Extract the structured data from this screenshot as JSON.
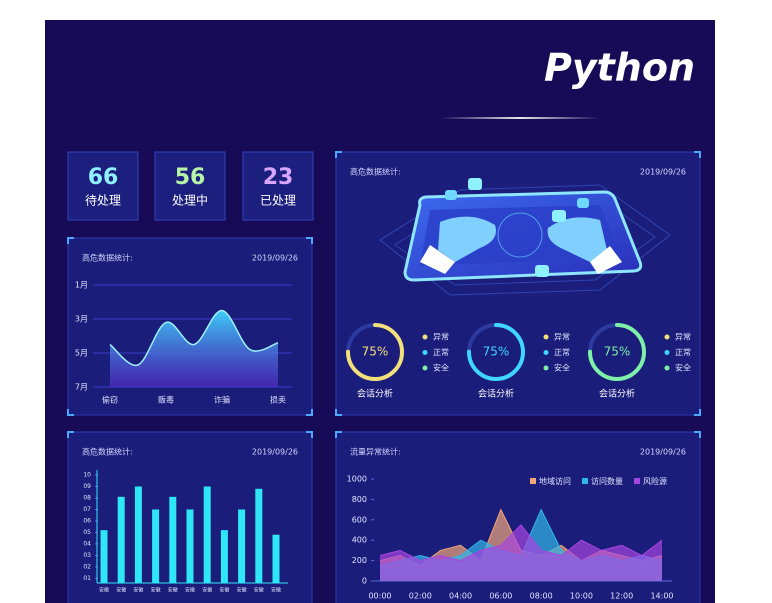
{
  "header": {
    "title": "Python"
  },
  "stats": [
    {
      "value": 66,
      "label": "待处理",
      "color": "#8ff0ff"
    },
    {
      "value": 56,
      "label": "处理中",
      "color": "#b6f5a6"
    },
    {
      "value": 23,
      "label": "已处理",
      "color": "#d9a6ff"
    }
  ],
  "chart_data": [
    {
      "type": "area",
      "title": "高危数据统计:",
      "date": "2019/09/26",
      "categories": [
        "偷窃",
        null,
        "贩毒",
        null,
        "诈骗",
        null,
        "损卖"
      ],
      "series": [
        {
          "color": "#3fd6ff",
          "values": [
            4.5,
            5.7,
            3.2,
            4.5,
            2.5,
            4.8,
            4.4
          ]
        }
      ],
      "ylim": [
        1,
        7
      ],
      "invert_y": true,
      "smooth": true,
      "yticks": [
        {
          "value": 1,
          "label": "1月"
        },
        {
          "value": 3,
          "label": "3月"
        },
        {
          "value": 5,
          "label": "5月"
        },
        {
          "value": 7,
          "label": "7月"
        }
      ],
      "grid": true
    },
    {
      "type": "donut",
      "title": "高危数据统计:",
      "date": "2019/09/26",
      "values": [
        75,
        75,
        75
      ],
      "value_labels": [
        "75%",
        "75%",
        "75%"
      ],
      "labels": [
        "会话分析",
        "会话分析",
        "会话分析"
      ],
      "colors": [
        "#f3e07a",
        "#3fd6ff",
        "#7ff0a8"
      ],
      "legend": [
        "异常",
        "正常",
        "安全"
      ],
      "legend_colors": [
        "#f3e07a",
        "#3fd6ff",
        "#7ff0a8"
      ]
    },
    {
      "type": "bar",
      "title": "高危数据统计:",
      "date": "2019/09/26",
      "categories": [
        "安徽",
        "安徽",
        "安徽",
        "安徽",
        "安徽",
        "安徽",
        "安徽",
        "安徽",
        "安徽",
        "安徽",
        "安徽"
      ],
      "values": [
        5.2,
        8.1,
        9,
        7,
        8.1,
        7,
        9,
        5.2,
        7,
        8.8,
        4.8
      ],
      "color": "#2ee6f5",
      "ylim": [
        0.6,
        10
      ],
      "yticks": [
        10,
        {
          "value": 9,
          "label": "09"
        },
        {
          "value": 8,
          "label": "08"
        },
        {
          "value": 7,
          "label": "07"
        },
        {
          "value": 6,
          "label": "06"
        },
        {
          "value": 5,
          "label": "05"
        },
        {
          "value": 4,
          "label": "04"
        },
        {
          "value": 3,
          "label": "03"
        },
        {
          "value": 2,
          "label": "02"
        },
        {
          "value": 1,
          "label": "01"
        }
      ]
    },
    {
      "type": "area",
      "title": "流量异常统计:",
      "date": "2019/09/26",
      "categories": [
        "00:00",
        null,
        "02:00",
        null,
        "04:00",
        null,
        "06:00",
        null,
        "08:00",
        null,
        "10:00",
        null,
        "12:00",
        null,
        "14:00"
      ],
      "series": [
        {
          "name": "地域访问",
          "color": "#f0a67a",
          "values": [
            200,
            250,
            150,
            300,
            350,
            200,
            700,
            300,
            250,
            350,
            200,
            300,
            250,
            200,
            250
          ]
        },
        {
          "name": "访问数量",
          "color": "#30b6e8",
          "values": [
            150,
            200,
            250,
            200,
            250,
            400,
            300,
            250,
            700,
            300,
            200,
            250,
            200,
            250,
            200
          ]
        },
        {
          "name": "风险源",
          "color": "#a646e0",
          "values": [
            250,
            300,
            200,
            250,
            200,
            300,
            350,
            550,
            300,
            250,
            400,
            300,
            350,
            250,
            400
          ]
        }
      ],
      "ylim": [
        0,
        1000
      ],
      "yticks": [
        0,
        200,
        400,
        600,
        800,
        1000
      ],
      "legend": "top-right"
    }
  ]
}
